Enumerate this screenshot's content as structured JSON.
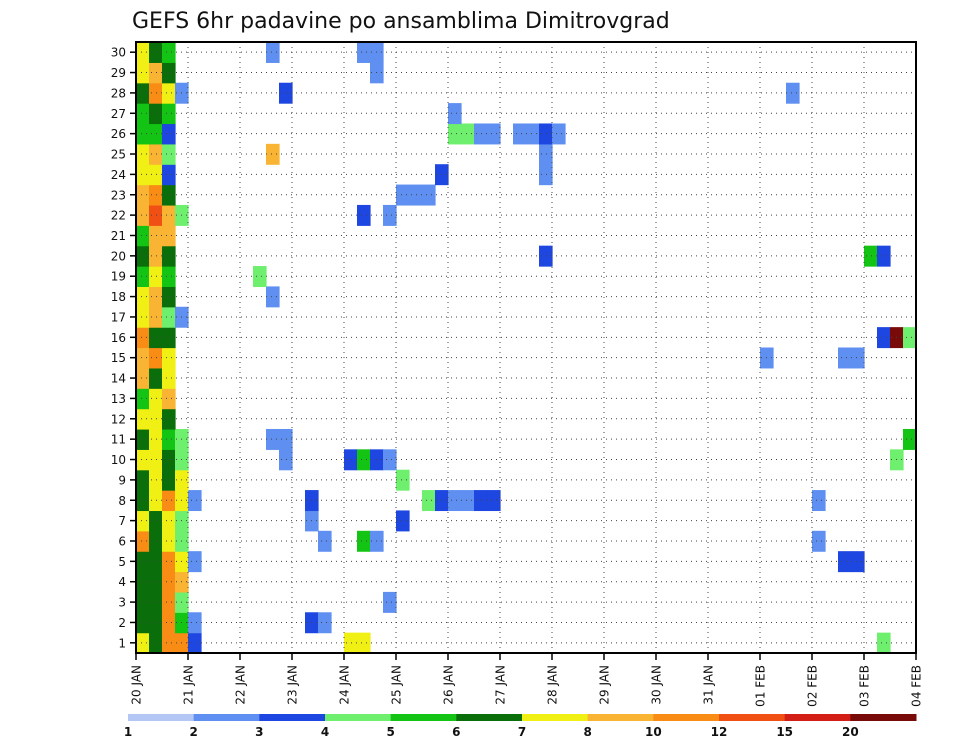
{
  "chart_data": {
    "type": "heatmap",
    "title": "GEFS 6hr padavine po ansamblima Dimitrovgrad",
    "x_tick_labels": [
      "20 JAN",
      "21 JAN",
      "22 JAN",
      "23 JAN",
      "24 JAN",
      "25 JAN",
      "26 JAN",
      "27 JAN",
      "28 JAN",
      "29 JAN",
      "30 JAN",
      "31 JAN",
      "01 FEB",
      "02 FEB",
      "03 FEB",
      "04 FEB"
    ],
    "y_tick_labels": [
      "1",
      "2",
      "3",
      "4",
      "5",
      "6",
      "7",
      "8",
      "9",
      "10",
      "11",
      "12",
      "13",
      "14",
      "15",
      "16",
      "17",
      "18",
      "19",
      "20",
      "21",
      "22",
      "23",
      "24",
      "25",
      "26",
      "27",
      "28",
      "29",
      "30"
    ],
    "x_range_days": [
      0,
      15
    ],
    "steps_per_day": 4,
    "y_range": [
      0.5,
      30.5
    ],
    "grid": true,
    "colorbar": {
      "position": "bottom",
      "labels": [
        "1",
        "2",
        "3",
        "4",
        "5",
        "6",
        "7",
        "8",
        "10",
        "12",
        "15",
        "20"
      ],
      "colors": [
        "#b3c6f4",
        "#5f8ff0",
        "#1e46e0",
        "#6ef06e",
        "#14c414",
        "#0a6e0a",
        "#f0f014",
        "#f8b432",
        "#f88c14",
        "#f05014",
        "#d21e14",
        "#780a0a"
      ]
    },
    "cells": [
      [
        1,
        0,
        6
      ],
      [
        1,
        1,
        5
      ],
      [
        1,
        2,
        8
      ],
      [
        1,
        3,
        8
      ],
      [
        1,
        4,
        2
      ],
      [
        1,
        16,
        6
      ],
      [
        1,
        17,
        6
      ],
      [
        1,
        57,
        3
      ],
      [
        2,
        0,
        5
      ],
      [
        2,
        1,
        5
      ],
      [
        2,
        2,
        8
      ],
      [
        2,
        3,
        4
      ],
      [
        2,
        4,
        1
      ],
      [
        2,
        13,
        2
      ],
      [
        2,
        14,
        1
      ],
      [
        3,
        0,
        5
      ],
      [
        3,
        1,
        5
      ],
      [
        3,
        2,
        8
      ],
      [
        3,
        3,
        3
      ],
      [
        3,
        19,
        1
      ],
      [
        4,
        0,
        5
      ],
      [
        4,
        1,
        5
      ],
      [
        4,
        2,
        8
      ],
      [
        4,
        3,
        7
      ],
      [
        5,
        0,
        5
      ],
      [
        5,
        1,
        5
      ],
      [
        5,
        2,
        8
      ],
      [
        5,
        3,
        6
      ],
      [
        5,
        4,
        1
      ],
      [
        5,
        54,
        2
      ],
      [
        5,
        55,
        2
      ],
      [
        6,
        0,
        8
      ],
      [
        6,
        1,
        5
      ],
      [
        6,
        2,
        6
      ],
      [
        6,
        3,
        3
      ],
      [
        6,
        14,
        1
      ],
      [
        6,
        17,
        4
      ],
      [
        6,
        18,
        1
      ],
      [
        6,
        52,
        1
      ],
      [
        7,
        0,
        6
      ],
      [
        7,
        1,
        5
      ],
      [
        7,
        2,
        6
      ],
      [
        7,
        3,
        3
      ],
      [
        7,
        13,
        1
      ],
      [
        7,
        20,
        2
      ],
      [
        8,
        0,
        5
      ],
      [
        8,
        1,
        6
      ],
      [
        8,
        2,
        8
      ],
      [
        8,
        3,
        6
      ],
      [
        8,
        4,
        1
      ],
      [
        8,
        13,
        2
      ],
      [
        8,
        22,
        3
      ],
      [
        8,
        23,
        2
      ],
      [
        8,
        24,
        1
      ],
      [
        8,
        25,
        1
      ],
      [
        8,
        26,
        2
      ],
      [
        8,
        27,
        2
      ],
      [
        8,
        52,
        1
      ],
      [
        9,
        0,
        5
      ],
      [
        9,
        1,
        6
      ],
      [
        9,
        2,
        5
      ],
      [
        9,
        3,
        6
      ],
      [
        9,
        20,
        3
      ],
      [
        10,
        0,
        6
      ],
      [
        10,
        1,
        6
      ],
      [
        10,
        2,
        5
      ],
      [
        10,
        3,
        3
      ],
      [
        10,
        11,
        1
      ],
      [
        10,
        16,
        2
      ],
      [
        10,
        17,
        4
      ],
      [
        10,
        18,
        2
      ],
      [
        10,
        19,
        1
      ],
      [
        10,
        58,
        3
      ],
      [
        11,
        0,
        5
      ],
      [
        11,
        1,
        6
      ],
      [
        11,
        2,
        4
      ],
      [
        11,
        3,
        3
      ],
      [
        11,
        10,
        1
      ],
      [
        11,
        11,
        1
      ],
      [
        11,
        59,
        4
      ],
      [
        12,
        0,
        6
      ],
      [
        12,
        1,
        6
      ],
      [
        12,
        2,
        5
      ],
      [
        13,
        0,
        4
      ],
      [
        13,
        1,
        6
      ],
      [
        13,
        2,
        7
      ],
      [
        14,
        0,
        7
      ],
      [
        14,
        1,
        5
      ],
      [
        14,
        2,
        6
      ],
      [
        15,
        0,
        7
      ],
      [
        15,
        1,
        8
      ],
      [
        15,
        2,
        6
      ],
      [
        15,
        48,
        1
      ],
      [
        15,
        54,
        1
      ],
      [
        15,
        55,
        1
      ],
      [
        16,
        0,
        8
      ],
      [
        16,
        1,
        5
      ],
      [
        16,
        2,
        5
      ],
      [
        16,
        57,
        2
      ],
      [
        16,
        58,
        11
      ],
      [
        16,
        59,
        3
      ],
      [
        17,
        0,
        6
      ],
      [
        17,
        1,
        7
      ],
      [
        17,
        2,
        3
      ],
      [
        17,
        3,
        1
      ],
      [
        18,
        0,
        6
      ],
      [
        18,
        1,
        7
      ],
      [
        18,
        2,
        5
      ],
      [
        18,
        10,
        1
      ],
      [
        19,
        0,
        4
      ],
      [
        19,
        1,
        6
      ],
      [
        19,
        2,
        4
      ],
      [
        19,
        9,
        3
      ],
      [
        20,
        0,
        5
      ],
      [
        20,
        1,
        7
      ],
      [
        20,
        2,
        5
      ],
      [
        20,
        31,
        2
      ],
      [
        20,
        56,
        4
      ],
      [
        20,
        57,
        2
      ],
      [
        21,
        0,
        4
      ],
      [
        21,
        1,
        7
      ],
      [
        21,
        2,
        7
      ],
      [
        22,
        0,
        7
      ],
      [
        22,
        1,
        9
      ],
      [
        22,
        2,
        7
      ],
      [
        22,
        3,
        3
      ],
      [
        22,
        17,
        2
      ],
      [
        22,
        19,
        1
      ],
      [
        23,
        0,
        7
      ],
      [
        23,
        1,
        8
      ],
      [
        23,
        2,
        5
      ],
      [
        23,
        20,
        1
      ],
      [
        23,
        21,
        1
      ],
      [
        23,
        22,
        1
      ],
      [
        24,
        0,
        6
      ],
      [
        24,
        1,
        6
      ],
      [
        24,
        2,
        2
      ],
      [
        24,
        23,
        2
      ],
      [
        24,
        31,
        1
      ],
      [
        25,
        0,
        6
      ],
      [
        25,
        1,
        7
      ],
      [
        25,
        2,
        3
      ],
      [
        25,
        10,
        7
      ],
      [
        25,
        31,
        1
      ],
      [
        26,
        0,
        4
      ],
      [
        26,
        1,
        4
      ],
      [
        26,
        2,
        2
      ],
      [
        26,
        24,
        3
      ],
      [
        26,
        25,
        3
      ],
      [
        26,
        26,
        1
      ],
      [
        26,
        27,
        1
      ],
      [
        26,
        29,
        1
      ],
      [
        26,
        30,
        1
      ],
      [
        26,
        31,
        2
      ],
      [
        26,
        32,
        1
      ],
      [
        27,
        0,
        4
      ],
      [
        27,
        1,
        5
      ],
      [
        27,
        2,
        4
      ],
      [
        27,
        24,
        1
      ],
      [
        28,
        0,
        5
      ],
      [
        28,
        1,
        8
      ],
      [
        28,
        2,
        6
      ],
      [
        28,
        3,
        1
      ],
      [
        28,
        11,
        2
      ],
      [
        28,
        50,
        1
      ],
      [
        29,
        0,
        6
      ],
      [
        29,
        1,
        7
      ],
      [
        29,
        2,
        5
      ],
      [
        29,
        18,
        1
      ],
      [
        30,
        0,
        6
      ],
      [
        30,
        1,
        5
      ],
      [
        30,
        2,
        4
      ],
      [
        30,
        10,
        1
      ],
      [
        30,
        17,
        1
      ],
      [
        30,
        18,
        1
      ]
    ]
  }
}
